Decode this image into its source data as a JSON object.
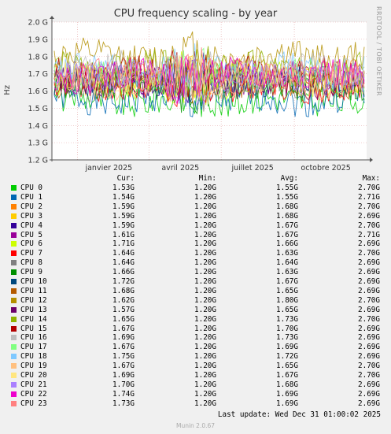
{
  "chart_data": {
    "type": "line",
    "title": "CPU frequency scaling - by year",
    "ylabel": "Hz",
    "ylim": [
      1.2,
      2.0
    ],
    "y_unit": "GHz",
    "yticks": [
      {
        "value": 1.2,
        "label": "1.2 G"
      },
      {
        "value": 1.3,
        "label": "1.3 G"
      },
      {
        "value": 1.4,
        "label": "1.4 G"
      },
      {
        "value": 1.5,
        "label": "1.5 G"
      },
      {
        "value": 1.6,
        "label": "1.6 G"
      },
      {
        "value": 1.7,
        "label": "1.7 G"
      },
      {
        "value": 1.8,
        "label": "1.8 G"
      },
      {
        "value": 1.9,
        "label": "1.9 G"
      },
      {
        "value": 2.0,
        "label": "2.0 G"
      }
    ],
    "xlim": [
      "2024-11-30",
      "2025-12-31"
    ],
    "xticks": [
      {
        "date": "2025-01-01",
        "label": "janvier 2025"
      },
      {
        "date": "2025-04-01",
        "label": "avril 2025"
      },
      {
        "date": "2025-07-01",
        "label": "juillet 2025"
      },
      {
        "date": "2025-10-01",
        "label": "octobre 2025"
      }
    ],
    "grid": true,
    "legend_columns": [
      "Cur:",
      "Min:",
      "Avg:",
      "Max:"
    ],
    "series": [
      {
        "name": "CPU 0",
        "color": "#00cc00",
        "cur": "1.53G",
        "min": "1.20G",
        "avg": "1.55G",
        "max": "2.70G",
        "avg_ghz": 1.55
      },
      {
        "name": "CPU 1",
        "color": "#0066b3",
        "cur": "1.54G",
        "min": "1.20G",
        "avg": "1.55G",
        "max": "2.71G",
        "avg_ghz": 1.55
      },
      {
        "name": "CPU 2",
        "color": "#ff8000",
        "cur": "1.59G",
        "min": "1.20G",
        "avg": "1.68G",
        "max": "2.70G",
        "avg_ghz": 1.68
      },
      {
        "name": "CPU 3",
        "color": "#ffcc00",
        "cur": "1.59G",
        "min": "1.20G",
        "avg": "1.68G",
        "max": "2.69G",
        "avg_ghz": 1.68
      },
      {
        "name": "CPU 4",
        "color": "#330099",
        "cur": "1.59G",
        "min": "1.20G",
        "avg": "1.67G",
        "max": "2.70G",
        "avg_ghz": 1.67
      },
      {
        "name": "CPU 5",
        "color": "#990099",
        "cur": "1.61G",
        "min": "1.20G",
        "avg": "1.67G",
        "max": "2.71G",
        "avg_ghz": 1.67
      },
      {
        "name": "CPU 6",
        "color": "#ccff00",
        "cur": "1.71G",
        "min": "1.20G",
        "avg": "1.66G",
        "max": "2.69G",
        "avg_ghz": 1.66
      },
      {
        "name": "CPU 7",
        "color": "#ff0000",
        "cur": "1.64G",
        "min": "1.20G",
        "avg": "1.63G",
        "max": "2.70G",
        "avg_ghz": 1.63
      },
      {
        "name": "CPU 8",
        "color": "#808080",
        "cur": "1.64G",
        "min": "1.20G",
        "avg": "1.64G",
        "max": "2.69G",
        "avg_ghz": 1.64
      },
      {
        "name": "CPU 9",
        "color": "#008f00",
        "cur": "1.66G",
        "min": "1.20G",
        "avg": "1.63G",
        "max": "2.69G",
        "avg_ghz": 1.63
      },
      {
        "name": "CPU 10",
        "color": "#00487d",
        "cur": "1.72G",
        "min": "1.20G",
        "avg": "1.67G",
        "max": "2.69G",
        "avg_ghz": 1.67
      },
      {
        "name": "CPU 11",
        "color": "#b35a00",
        "cur": "1.68G",
        "min": "1.20G",
        "avg": "1.65G",
        "max": "2.69G",
        "avg_ghz": 1.65
      },
      {
        "name": "CPU 12",
        "color": "#b38f00",
        "cur": "1.62G",
        "min": "1.20G",
        "avg": "1.80G",
        "max": "2.70G",
        "avg_ghz": 1.8
      },
      {
        "name": "CPU 13",
        "color": "#6b006b",
        "cur": "1.57G",
        "min": "1.20G",
        "avg": "1.65G",
        "max": "2.69G",
        "avg_ghz": 1.65
      },
      {
        "name": "CPU 14",
        "color": "#8fb300",
        "cur": "1.65G",
        "min": "1.20G",
        "avg": "1.73G",
        "max": "2.70G",
        "avg_ghz": 1.73
      },
      {
        "name": "CPU 15",
        "color": "#b30000",
        "cur": "1.67G",
        "min": "1.20G",
        "avg": "1.70G",
        "max": "2.69G",
        "avg_ghz": 1.7
      },
      {
        "name": "CPU 16",
        "color": "#bebebe",
        "cur": "1.69G",
        "min": "1.20G",
        "avg": "1.73G",
        "max": "2.69G",
        "avg_ghz": 1.73
      },
      {
        "name": "CPU 17",
        "color": "#80ff80",
        "cur": "1.67G",
        "min": "1.20G",
        "avg": "1.69G",
        "max": "2.69G",
        "avg_ghz": 1.69
      },
      {
        "name": "CPU 18",
        "color": "#80c9ff",
        "cur": "1.75G",
        "min": "1.20G",
        "avg": "1.72G",
        "max": "2.69G",
        "avg_ghz": 1.72
      },
      {
        "name": "CPU 19",
        "color": "#ffc080",
        "cur": "1.67G",
        "min": "1.20G",
        "avg": "1.65G",
        "max": "2.70G",
        "avg_ghz": 1.65
      },
      {
        "name": "CPU 20",
        "color": "#ffe680",
        "cur": "1.69G",
        "min": "1.20G",
        "avg": "1.67G",
        "max": "2.70G",
        "avg_ghz": 1.67
      },
      {
        "name": "CPU 21",
        "color": "#aa80ff",
        "cur": "1.70G",
        "min": "1.20G",
        "avg": "1.68G",
        "max": "2.69G",
        "avg_ghz": 1.68
      },
      {
        "name": "CPU 22",
        "color": "#ee00cc",
        "cur": "1.74G",
        "min": "1.20G",
        "avg": "1.69G",
        "max": "2.69G",
        "avg_ghz": 1.69
      },
      {
        "name": "CPU 23",
        "color": "#ff8080",
        "cur": "1.73G",
        "min": "1.20G",
        "avg": "1.69G",
        "max": "2.69G",
        "avg_ghz": 1.69
      }
    ]
  },
  "side_text": "RRDTOOL / TOBI OETIKER",
  "last_update": "Last update: Wed Dec 31 01:00:02 2025",
  "footer": "Munin 2.0.67"
}
